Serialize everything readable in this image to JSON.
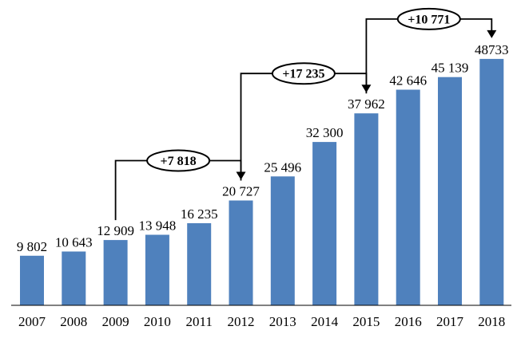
{
  "chart_data": {
    "type": "bar",
    "title": "",
    "xlabel": "",
    "ylabel": "",
    "categories": [
      "2007",
      "2008",
      "2009",
      "2010",
      "2011",
      "2012",
      "2013",
      "2014",
      "2015",
      "2016",
      "2017",
      "2018"
    ],
    "values": [
      9802,
      10643,
      12909,
      13948,
      16235,
      20727,
      25496,
      32300,
      37962,
      42646,
      45139,
      48733
    ],
    "value_labels": [
      "9 802",
      "10 643",
      "12 909",
      "13 948",
      "16 235",
      "20 727",
      "25 496",
      "32 300",
      "37 962",
      "42 646",
      "45 139",
      "48733"
    ],
    "ylim": [
      0,
      55000
    ],
    "grid": false,
    "bar_color": "#4F81BD",
    "annotations": [
      {
        "from": "2009",
        "to": "2012",
        "label": "+7 818"
      },
      {
        "from": "2012",
        "to": "2015",
        "label": "+17 235"
      },
      {
        "from": "2015",
        "to": "2018",
        "label": "+10 771"
      }
    ]
  }
}
